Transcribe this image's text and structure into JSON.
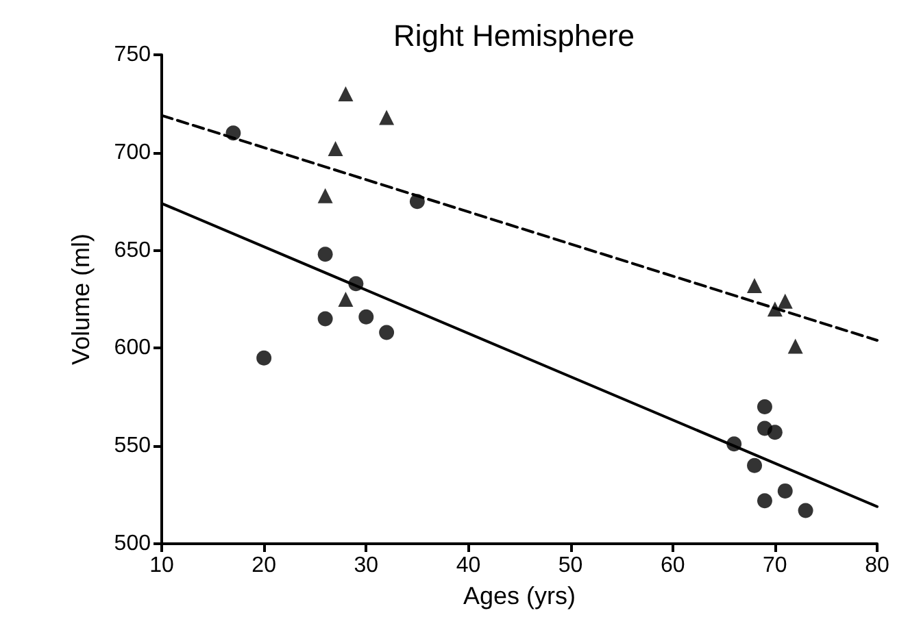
{
  "chart_data": {
    "type": "scatter",
    "title": "Right Hemisphere",
    "xlabel": "Ages (yrs)",
    "ylabel": "Volume (ml)",
    "xlim": [
      10,
      80
    ],
    "xticks": [
      10,
      20,
      30,
      40,
      50,
      60,
      70,
      80
    ],
    "ylim": [
      500,
      750
    ],
    "yticks": [
      500,
      550,
      600,
      650,
      700,
      750
    ],
    "grid": false,
    "series": [
      {
        "marker": "circle",
        "color": "#000000",
        "x": [
          17,
          20,
          26,
          26,
          29,
          30,
          32,
          35,
          66,
          68,
          69,
          69,
          70,
          69,
          71,
          73
        ],
        "values": [
          710,
          595,
          648,
          615,
          633,
          616,
          608,
          675,
          551,
          540,
          570,
          559,
          557,
          522,
          527,
          517
        ]
      },
      {
        "marker": "triangle",
        "color": "#000000",
        "x": [
          26,
          27,
          28,
          32,
          28,
          68,
          70,
          71,
          72
        ],
        "values": [
          678,
          702,
          730,
          718,
          625,
          632,
          620,
          624,
          601
        ]
      },
      {
        "type": "line",
        "line_style": "solid",
        "marker": "none",
        "color": "#000000",
        "x": [
          10,
          80
        ],
        "values": [
          674,
          519
        ]
      },
      {
        "type": "line",
        "line_style": "dashed",
        "marker": "none",
        "color": "#000000",
        "x": [
          10,
          80
        ],
        "values": [
          719,
          604
        ]
      }
    ]
  }
}
